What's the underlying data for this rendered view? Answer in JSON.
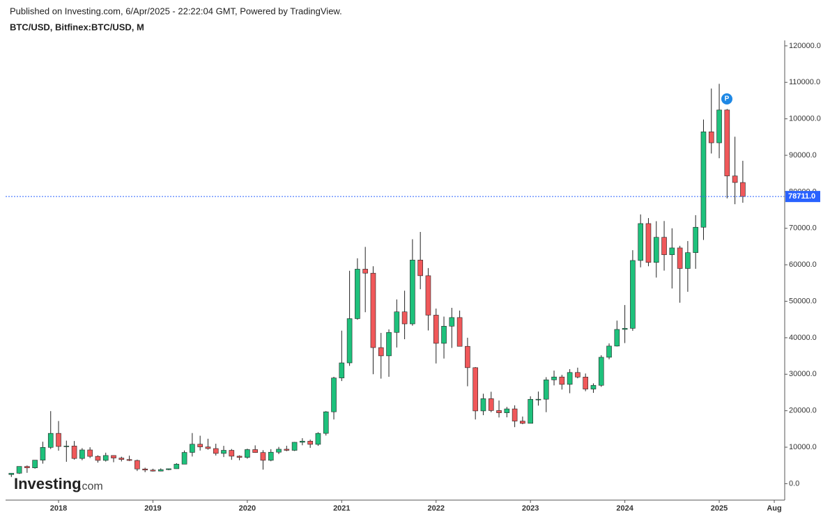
{
  "header": {
    "published": "Published on Investing.com, 6/Apr/2025 - 22:22:04 GMT, Powered by TradingView.",
    "symbol": "BTC/USD, Bitfinex:BTC/USD, M"
  },
  "logo": {
    "brand": "Investing",
    "suffix": ".com"
  },
  "marker": "P",
  "chart_data": {
    "type": "candlestick",
    "x": [
      "2017-07",
      "2017-08",
      "2017-09",
      "2017-10",
      "2017-11",
      "2017-12",
      "2018-01",
      "2018-02",
      "2018-03",
      "2018-04",
      "2018-05",
      "2018-06",
      "2018-07",
      "2018-08",
      "2018-09",
      "2018-10",
      "2018-11",
      "2018-12",
      "2019-01",
      "2019-02",
      "2019-03",
      "2019-04",
      "2019-05",
      "2019-06",
      "2019-07",
      "2019-08",
      "2019-09",
      "2019-10",
      "2019-11",
      "2019-12",
      "2020-01",
      "2020-02",
      "2020-03",
      "2020-04",
      "2020-05",
      "2020-06",
      "2020-07",
      "2020-08",
      "2020-09",
      "2020-10",
      "2020-11",
      "2020-12",
      "2021-01",
      "2021-02",
      "2021-03",
      "2021-04",
      "2021-05",
      "2021-06",
      "2021-07",
      "2021-08",
      "2021-09",
      "2021-10",
      "2021-11",
      "2021-12",
      "2022-01",
      "2022-02",
      "2022-03",
      "2022-04",
      "2022-05",
      "2022-06",
      "2022-07",
      "2022-08",
      "2022-09",
      "2022-10",
      "2022-11",
      "2022-12",
      "2023-01",
      "2023-02",
      "2023-03",
      "2023-04",
      "2023-05",
      "2023-06",
      "2023-07",
      "2023-08",
      "2023-09",
      "2023-10",
      "2023-11",
      "2023-12",
      "2024-01",
      "2024-02",
      "2024-03",
      "2024-04",
      "2024-05",
      "2024-06",
      "2024-07",
      "2024-08",
      "2024-09",
      "2024-10",
      "2024-11",
      "2024-12",
      "2025-01",
      "2025-02",
      "2025-03",
      "2025-04"
    ],
    "open": [
      2500,
      2870,
      4730,
      4340,
      6450,
      9950,
      13800,
      10200,
      10330,
      6920,
      9250,
      7500,
      6390,
      7730,
      7030,
      6630,
      6370,
      4040,
      3740,
      3460,
      3850,
      4100,
      5350,
      8570,
      10820,
      10080,
      9630,
      8300,
      9150,
      7540,
      7200,
      9350,
      8540,
      6410,
      8630,
      9450,
      9140,
      11350,
      11660,
      10780,
      13800,
      19700,
      28980,
      33110,
      45240,
      58800,
      57700,
      37300,
      35040,
      41460,
      47100,
      43800,
      61300,
      57000,
      46200,
      38470,
      43170,
      45540,
      37650,
      31800,
      19950,
      23300,
      20050,
      19430,
      20500,
      17160,
      16540,
      23130,
      23150,
      28460,
      29250,
      27220,
      30480,
      29230,
      25930,
      26960,
      34650,
      37720,
      42280,
      42580,
      61180,
      71300,
      60650,
      67530,
      62750,
      64620,
      58980,
      63330,
      70290,
      96450,
      93430,
      102430,
      84350,
      82550
    ],
    "high": [
      2900,
      4760,
      4980,
      6470,
      11500,
      19890,
      17180,
      11800,
      11700,
      9750,
      9990,
      7770,
      8500,
      7760,
      7400,
      7680,
      6600,
      4390,
      4100,
      4210,
      4140,
      5630,
      9100,
      13880,
      13150,
      12320,
      10950,
      10370,
      9500,
      7760,
      9590,
      10500,
      9190,
      9460,
      10080,
      10400,
      11440,
      12470,
      12080,
      14100,
      19900,
      29300,
      41950,
      58350,
      61780,
      64900,
      59600,
      41330,
      42300,
      50500,
      52900,
      67000,
      69000,
      59100,
      48000,
      45800,
      48200,
      47450,
      40000,
      31960,
      24660,
      25200,
      22800,
      21050,
      21480,
      18400,
      23950,
      25250,
      29200,
      31000,
      29830,
      31400,
      31800,
      30200,
      27500,
      35200,
      38450,
      44700,
      48970,
      64000,
      73800,
      72800,
      71950,
      72000,
      70000,
      65200,
      66500,
      73600,
      99800,
      108300,
      109600,
      102700,
      95100,
      88500
    ],
    "low": [
      1840,
      2690,
      2980,
      4110,
      5500,
      9500,
      9050,
      6000,
      6600,
      6430,
      7040,
      5770,
      6070,
      5880,
      6100,
      6200,
      3480,
      3150,
      3350,
      3400,
      3700,
      4080,
      5330,
      7450,
      9080,
      9330,
      7710,
      7300,
      6540,
      6430,
      6850,
      8450,
      3850,
      6150,
      8110,
      8900,
      8960,
      10540,
      9830,
      10370,
      13200,
      17600,
      28130,
      32300,
      44950,
      47000,
      30000,
      28800,
      29300,
      37330,
      39600,
      43300,
      53300,
      42000,
      32950,
      34300,
      37200,
      37700,
      26700,
      17600,
      18780,
      19600,
      18150,
      18190,
      15500,
      16300,
      16500,
      21400,
      19600,
      26940,
      25800,
      24800,
      28880,
      25350,
      24900,
      26540,
      34100,
      37600,
      38540,
      41900,
      59300,
      59600,
      56500,
      58400,
      53500,
      49600,
      52600,
      58900,
      66800,
      90500,
      89200,
      78200,
      76600,
      77000
    ],
    "close": [
      2870,
      4730,
      4340,
      6450,
      9950,
      13800,
      10200,
      10330,
      6920,
      9250,
      7500,
      6390,
      7730,
      7030,
      6630,
      6370,
      4040,
      3740,
      3460,
      3850,
      4100,
      5350,
      8570,
      10820,
      10080,
      9630,
      8300,
      9150,
      7540,
      7200,
      9350,
      8540,
      6410,
      8630,
      9450,
      9140,
      11350,
      11660,
      10780,
      13800,
      19700,
      28980,
      33110,
      45240,
      58800,
      57700,
      37300,
      35040,
      41460,
      47100,
      43800,
      61300,
      57000,
      46200,
      38470,
      43170,
      45540,
      37650,
      31800,
      19950,
      23300,
      20050,
      19430,
      20500,
      17160,
      16540,
      23130,
      23150,
      28460,
      29250,
      27220,
      30480,
      29230,
      25930,
      26960,
      34650,
      37720,
      42280,
      42580,
      61180,
      71300,
      60650,
      67530,
      62750,
      64620,
      58980,
      63330,
      70290,
      96450,
      93430,
      102430,
      84350,
      82550,
      78711
    ],
    "up_color": "#1ec17c",
    "down_color": "#f0585a",
    "wick_color": "#222222",
    "ylim": [
      -4500,
      121500
    ],
    "yticks": [
      {
        "value": 0,
        "label": "0.0"
      },
      {
        "value": 10000,
        "label": "10000.0"
      },
      {
        "value": 20000,
        "label": "20000.0"
      },
      {
        "value": 30000,
        "label": "30000.0"
      },
      {
        "value": 40000,
        "label": "40000.0"
      },
      {
        "value": 50000,
        "label": "50000.0"
      },
      {
        "value": 60000,
        "label": "60000.0"
      },
      {
        "value": 70000,
        "label": "70000.0"
      },
      {
        "value": 80000,
        "label": "80000.0"
      },
      {
        "value": 90000,
        "label": "90000.0"
      },
      {
        "value": 100000,
        "label": "100000.0"
      },
      {
        "value": 110000,
        "label": "110000.0"
      },
      {
        "value": 120000,
        "label": "120000.0"
      }
    ],
    "xticks": [
      {
        "value": "2018-01",
        "label": "2018"
      },
      {
        "value": "2019-01",
        "label": "2019"
      },
      {
        "value": "2020-01",
        "label": "2020"
      },
      {
        "value": "2021-01",
        "label": "2021"
      },
      {
        "value": "2022-01",
        "label": "2022"
      },
      {
        "value": "2023-01",
        "label": "2023"
      },
      {
        "value": "2024-01",
        "label": "2024"
      },
      {
        "value": "2025-01",
        "label": "2025"
      },
      {
        "value": "2025-08",
        "label": "Aug"
      }
    ],
    "last_price": {
      "value": 78711,
      "label": "78711.0"
    },
    "last_price_color": "#2962ff"
  }
}
